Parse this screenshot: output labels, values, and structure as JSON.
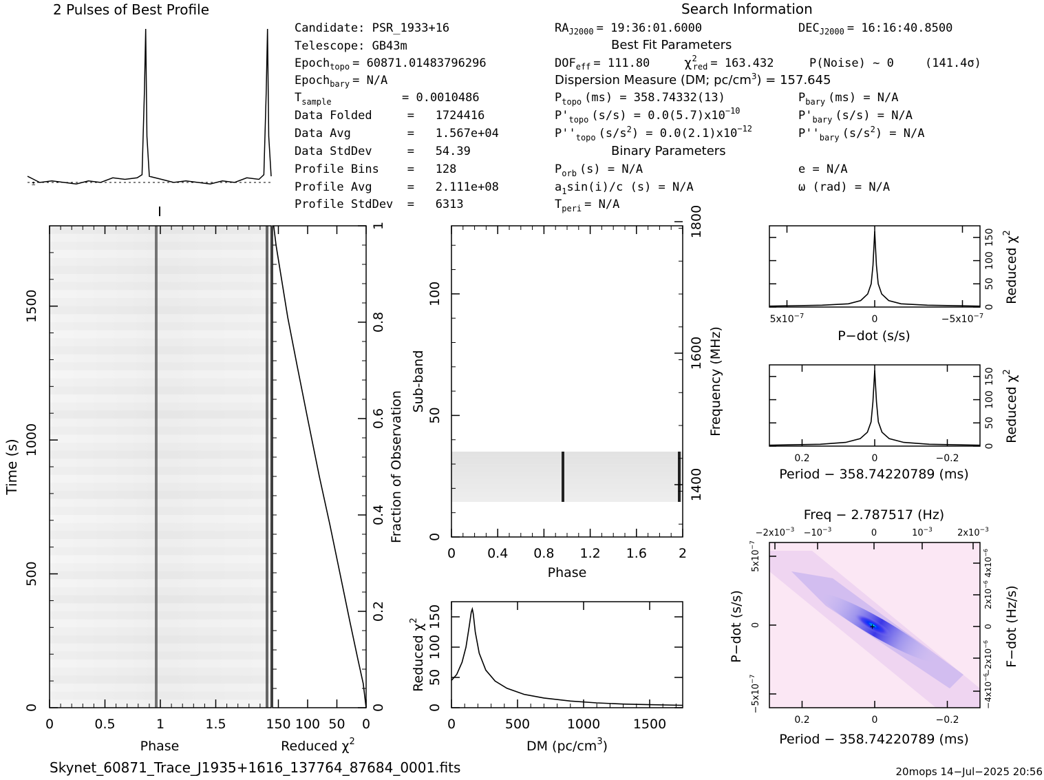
{
  "profile": {
    "title": "2 Pulses of Best Profile"
  },
  "search_info": {
    "title": "Search Information",
    "candidate": "Candidate:  PSR_1933+16",
    "telescope": "Telescope:  GB43m",
    "epoch_topo_label": "Epoch",
    "epoch_topo_sub": "topo",
    "epoch_topo_value": "= 60871.01483796296",
    "epoch_bary_label": "Epoch",
    "epoch_bary_sub": "bary",
    "epoch_bary_value": "= N/A",
    "tsample_label": "T",
    "tsample_sub": "sample",
    "tsample_value": "=   0.0010486",
    "data_folded": "Data Folded     =   1724416",
    "data_avg": "Data Avg        =   1.567e+04",
    "data_stddev": "Data StdDev     =   54.39",
    "profile_bins": "Profile Bins    =   128",
    "profile_avg": "Profile Avg     =   2.111e+08",
    "profile_stddev": "Profile StdDev  =   6313",
    "ra_label": "RA",
    "ra_sub": "J2000",
    "ra_value": "= 19:36:01.6000",
    "dec_label": "DEC",
    "dec_sub": "J2000",
    "dec_value": "= 16:16:40.8500",
    "best_fit_title": "Best Fit Parameters",
    "dof_label": "DOF",
    "dof_sub": "eff",
    "dof_value": "= 111.80",
    "chi_label": "χ",
    "chi_sup": "2",
    "chi_sub": "red",
    "chi_value": "= 163.432",
    "pnoise": "P(Noise) ~ 0",
    "sigma": "(141.4σ)",
    "dm_line": "Dispersion Measure (DM; pc/cm",
    "dm_sup": "3",
    "dm_value": ") = 157.645",
    "ptopo_label": "P",
    "ptopo_sub": "topo",
    "ptopo_value": "(ms) =  358.74332(13)",
    "pbary_label": "P",
    "pbary_sub": "bary",
    "pbary_value": "(ms) = N/A",
    "pdtopo_label": "P'",
    "pdtopo_sub": "topo",
    "pdtopo_value": "(s/s) = 0.0(5.7)x10",
    "pdtopo_exp": "−10",
    "pdbary_label": "P'",
    "pdbary_sub": "bary",
    "pdbary_value": "(s/s) = N/A",
    "pddtopo_label": "P''",
    "pddtopo_sub": "topo",
    "pddtopo_value": "(s/s",
    "pddtopo_sup": "2",
    "pddtopo_value2": ") = 0.0(2.1)x10",
    "pddtopo_exp": "−12",
    "pddbary_label": "P''",
    "pddbary_sub": "bary",
    "pddbary_value": "(s/s",
    "pddbary_sup": "2",
    "pddbary_value2": ") = N/A",
    "binary_title": "Binary Parameters",
    "porb_label": "P",
    "porb_sub": "orb",
    "porb_value": "(s) = N/A",
    "e_value": "e = N/A",
    "a1_label": "a",
    "a1_sub": "1",
    "a1_value": "sin(i)/c (s) = N/A",
    "omega_value": "ω (rad) = N/A",
    "tperi_label": "T",
    "tperi_sub": "peri",
    "tperi_value": "= N/A"
  },
  "footer": {
    "filename": "Skynet_60871_Trace_J1935+1616_137764_87684_0001.fits",
    "stamp": "20mops 14−Jul−2025 20:56"
  },
  "colors": {
    "ink": "#000000",
    "grey_bg": "#f0f0f0",
    "ppdot_bg": "#fbe7f4",
    "ppdot_core": "#1010e0",
    "ppdot_peak": "#00e0c0"
  },
  "chart_data": [
    {
      "type": "line",
      "name_ref": "pulse-profile",
      "title": "2 Pulses of Best Profile",
      "x": [
        0,
        0.05,
        0.1,
        0.2,
        0.3,
        0.4,
        0.5,
        0.6,
        0.7,
        0.8,
        0.9,
        0.94,
        0.96,
        0.97,
        0.98,
        1.0,
        1.1,
        1.2,
        1.3,
        1.4,
        1.5,
        1.6,
        1.7,
        1.8,
        1.9,
        1.94,
        1.96,
        1.97,
        1.98,
        2.0
      ],
      "values": [
        0.04,
        0.02,
        0.0,
        0.01,
        0.0,
        -0.01,
        0.01,
        0.0,
        0.03,
        0.02,
        0.03,
        0.05,
        0.6,
        1.0,
        0.3,
        0.04,
        0.02,
        0.0,
        0.01,
        0.0,
        -0.01,
        0.01,
        0.0,
        0.03,
        0.02,
        0.05,
        0.6,
        1.0,
        0.3,
        0.04
      ],
      "xlim": [
        0,
        2
      ]
    },
    {
      "type": "heatmap",
      "name_ref": "time-phase",
      "xlabel": "Phase",
      "ylabel": "Time (s)",
      "xlim": [
        0,
        2
      ],
      "ylim": [
        0,
        1800
      ],
      "x_ticks": [
        "0",
        "0.5",
        "1",
        "1.5"
      ],
      "y_ticks": [
        "0",
        "500",
        "1000",
        "1500"
      ],
      "pulse_phase": [
        0.97,
        1.97
      ]
    },
    {
      "type": "line",
      "name_ref": "chi-vs-fraction",
      "xlabel": "Reduced χ",
      "xlabel_sup": "2",
      "ylabel": "Fraction of Observation",
      "x_tick_labels": [
        "150",
        "100",
        "50",
        "0"
      ],
      "y_ticks": [
        "0",
        "0.2",
        "0.4",
        "0.6",
        "0.8",
        "1"
      ],
      "xlim": [
        160,
        0
      ],
      "ylim": [
        0,
        1
      ],
      "x": [
        0,
        5,
        14,
        28,
        45,
        62,
        80,
        100,
        118,
        134,
        146,
        154,
        158
      ],
      "y": [
        0.0,
        0.05,
        0.1,
        0.18,
        0.28,
        0.38,
        0.48,
        0.6,
        0.71,
        0.81,
        0.9,
        0.96,
        1.0
      ]
    },
    {
      "type": "heatmap",
      "name_ref": "subband-phase",
      "xlabel": "Phase",
      "ylabel": "Sub-band",
      "y2label": "Frequency (MHz)",
      "xlim": [
        0,
        2
      ],
      "ylim": [
        0,
        128
      ],
      "x_ticks": [
        "0",
        "0.4",
        "0.8",
        "1.2",
        "1.6",
        "2"
      ],
      "y_ticks": [
        "0",
        "50",
        "100"
      ],
      "y2_ticks": [
        "1400",
        "1600",
        "1800"
      ],
      "active_subbands": [
        14,
        35
      ],
      "pulse_phase": [
        0.97,
        1.97
      ]
    },
    {
      "type": "line",
      "name_ref": "chi-vs-dm",
      "xlabel": "DM (pc/cm",
      "xlabel_sup": "3",
      "xlabel_end": ")",
      "ylabel": "Reduced χ",
      "ylabel_sup": "2",
      "x_ticks": [
        "0",
        "500",
        "1000",
        "1500"
      ],
      "y_ticks": [
        "0",
        "50",
        "100",
        "150"
      ],
      "xlim": [
        0,
        1750
      ],
      "ylim": [
        0,
        175
      ],
      "x": [
        0,
        40,
        80,
        110,
        135,
        150,
        158,
        165,
        180,
        210,
        260,
        330,
        420,
        550,
        700,
        900,
        1100,
        1300,
        1500,
        1750
      ],
      "y": [
        45,
        55,
        75,
        100,
        135,
        158,
        163,
        155,
        125,
        90,
        62,
        44,
        32,
        22,
        16,
        11,
        8,
        6,
        5,
        4
      ]
    },
    {
      "type": "line",
      "name_ref": "chi-vs-pdot",
      "xlabel": "P−dot (s/s)",
      "ylabel": "Reduced χ",
      "ylabel_sup": "2",
      "x_tick_labels": [
        "5x10",
        "0",
        "−5x10"
      ],
      "x_tick_exp": "−7",
      "y_ticks": [
        "0",
        "50",
        "100",
        "150"
      ],
      "xlim": [
        6e-07,
        -6e-07
      ],
      "ylim": [
        0,
        175
      ],
      "x": [
        6e-07,
        3e-07,
        1.5e-07,
        8e-08,
        4e-08,
        2e-08,
        1e-08,
        0,
        -1e-08,
        -2e-08,
        -4e-08,
        -8e-08,
        -1.5e-07,
        -3e-07,
        -6e-07
      ],
      "y": [
        2,
        4,
        7,
        14,
        28,
        50,
        90,
        163,
        90,
        50,
        28,
        14,
        7,
        4,
        2
      ]
    },
    {
      "type": "line",
      "name_ref": "chi-vs-period",
      "xlabel": "Period − 358.74220789 (ms)",
      "ylabel": "Reduced χ",
      "ylabel_sup": "2",
      "x_ticks": [
        "0.2",
        "0",
        "−0.2"
      ],
      "y_ticks": [
        "0",
        "50",
        "100",
        "150"
      ],
      "xlim": [
        0.29,
        -0.29
      ],
      "ylim": [
        0,
        175
      ],
      "x": [
        0.29,
        0.15,
        0.08,
        0.04,
        0.02,
        0.01,
        0.005,
        0,
        -0.005,
        -0.01,
        -0.02,
        -0.04,
        -0.08,
        -0.15,
        -0.29
      ],
      "y": [
        2,
        4,
        8,
        16,
        30,
        52,
        95,
        163,
        95,
        52,
        30,
        16,
        8,
        4,
        2
      ]
    },
    {
      "type": "heatmap",
      "name_ref": "p-pdot",
      "xlabel": "Period − 358.74220789 (ms)",
      "ylabel": "P−dot (s/s)",
      "x2label": "Freq − 2.787517 (Hz)",
      "y2label": "F−dot (Hz/s)",
      "x_ticks": [
        "0.2",
        "0",
        "−0.2"
      ],
      "x2_tick_labels": [
        "−2x10",
        "−10",
        "0",
        "10",
        "2x10"
      ],
      "x2_tick_exp": "−3",
      "y_tick_labels": [
        "−5x10",
        "0",
        "5x10"
      ],
      "y_tick_exp": "−7",
      "y2_tick_labels": [
        "4x10",
        "2x10",
        "0",
        "−2x10",
        "−4x10"
      ],
      "y2_tick_exp": "−6",
      "xlim": [
        0.29,
        -0.29
      ],
      "ylim": [
        6e-07,
        -6e-07
      ]
    }
  ]
}
